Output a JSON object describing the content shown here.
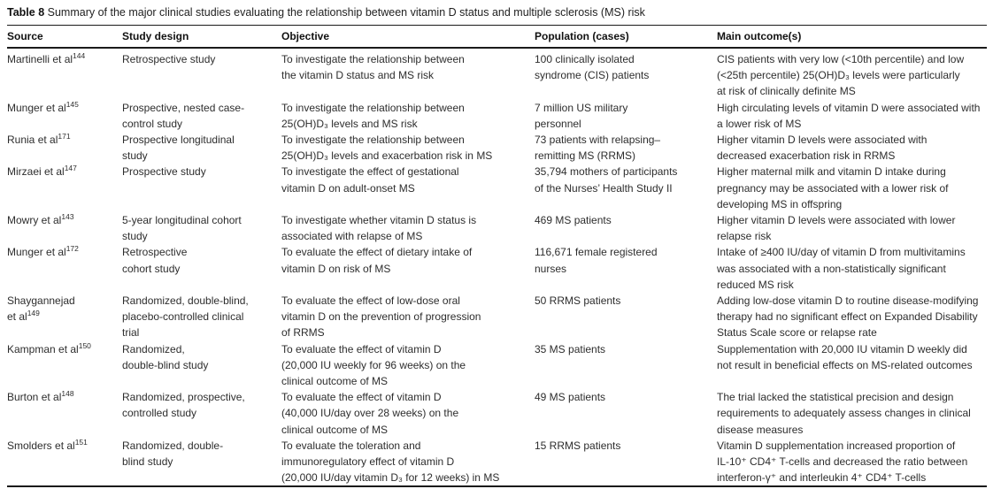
{
  "title": {
    "label": "Table 8",
    "text": " Summary of the major clinical studies evaluating the relationship between vitamin D status and multiple sclerosis (MS) risk"
  },
  "table": {
    "columns": [
      "Source",
      "Study design",
      "Objective",
      "Population (cases)",
      "Main outcome(s)"
    ],
    "rows": [
      {
        "source": "Martinelli et al",
        "ref": "144",
        "design": "Retrospective study",
        "objective": "To investigate the relationship between\nthe vitamin D status and MS risk",
        "population": "100 clinically isolated\nsyndrome (CIS) patients",
        "outcome": "CIS patients with very low (<10th percentile) and low\n(<25th percentile) 25(OH)D₃ levels were particularly\nat risk of clinically definite MS"
      },
      {
        "source": "Munger et al",
        "ref": "145",
        "design": "Prospective, nested case-\ncontrol study",
        "objective": "To investigate the relationship between\n25(OH)D₃ levels and MS risk",
        "population": "7 million US military\npersonnel",
        "outcome": "High circulating levels of vitamin D were associated with\na lower risk of MS"
      },
      {
        "source": "Runia et al",
        "ref": "171",
        "design": "Prospective longitudinal\nstudy",
        "objective": "To investigate the relationship between\n25(OH)D₃ levels and exacerbation risk in MS",
        "population": "73 patients with relapsing–\nremitting MS (RRMS)",
        "outcome": "Higher vitamin D levels were associated with\ndecreased exacerbation risk in RRMS"
      },
      {
        "source": "Mirzaei et al",
        "ref": "147",
        "design": "Prospective study",
        "objective": "To investigate the effect of gestational\nvitamin D on adult-onset MS",
        "population": "35,794 mothers of participants\nof the Nurses’ Health Study II",
        "outcome": "Higher maternal milk and vitamin D intake during\npregnancy may be associated with a lower risk of\ndeveloping MS in offspring"
      },
      {
        "source": "Mowry et al",
        "ref": "143",
        "design": "5-year longitudinal cohort\nstudy",
        "objective": "To investigate whether vitamin D status is\nassociated with relapse of MS",
        "population": "469 MS patients",
        "outcome": "Higher vitamin D levels were associated with lower\nrelapse risk"
      },
      {
        "source": "Munger et al",
        "ref": "172",
        "design": "Retrospective\ncohort study",
        "objective": "To evaluate the effect of dietary intake of\nvitamin D on risk of MS",
        "population": "116,671 female registered\nnurses",
        "outcome": "Intake of ≥400 IU/day of vitamin D from multivitamins\nwas associated with a non-statistically significant\nreduced MS risk"
      },
      {
        "source": "Shaygannejad\net al",
        "ref": "149",
        "design": "Randomized, double-blind,\nplacebo-controlled clinical\ntrial",
        "objective": "To evaluate the effect of low-dose oral\nvitamin D on the prevention of progression\nof RRMS",
        "population": "50 RRMS patients",
        "outcome": "Adding low-dose vitamin D to routine disease-modifying\ntherapy had no significant effect on Expanded Disability\nStatus Scale score or relapse rate"
      },
      {
        "source": "Kampman et al",
        "ref": "150",
        "design": "Randomized,\ndouble-blind study",
        "objective": "To evaluate the effect of vitamin D\n(20,000 IU weekly for 96 weeks) on the\nclinical outcome of MS",
        "population": "35 MS patients",
        "outcome": "Supplementation with 20,000 IU vitamin D weekly did\nnot result in beneficial effects on MS-related outcomes"
      },
      {
        "source": "Burton et al",
        "ref": "148",
        "design": "Randomized, prospective,\ncontrolled study",
        "objective": "To evaluate the effect of vitamin D\n(40,000 IU/day over 28 weeks) on the\nclinical outcome of MS",
        "population": "49 MS patients",
        "outcome": "The trial lacked the statistical precision and design\nrequirements to adequately assess changes in clinical\ndisease measures"
      },
      {
        "source": "Smolders et al",
        "ref": "151",
        "design": "Randomized, double-\nblind study",
        "objective": "To evaluate the toleration and\nimmunoregulatory effect of vitamin D\n(20,000 IU/day vitamin D₃ for 12 weeks) in MS",
        "population": "15 RRMS patients",
        "outcome": "Vitamin D supplementation increased proportion of\nIL-10⁺ CD4⁺ T-cells and decreased the ratio between\ninterferon-γ⁺ and interleukin 4⁺ CD4⁺ T-cells"
      }
    ]
  }
}
